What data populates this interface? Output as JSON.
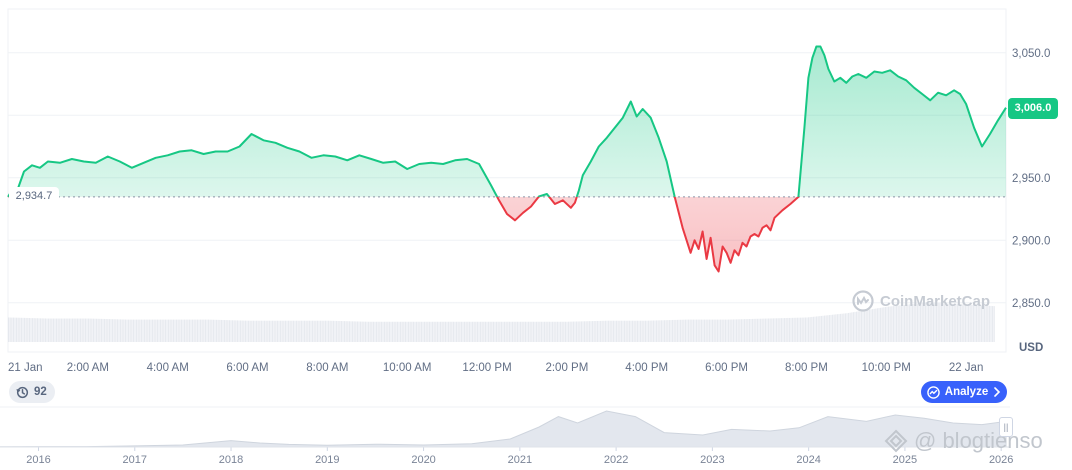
{
  "colors": {
    "up": "#16c784",
    "down": "#ea3943",
    "accent": "#3861fb",
    "grid": "#eff2f5",
    "axis_text": "#616e85"
  },
  "price_chip": "3,006.0",
  "base_chip": "2,934.7",
  "currency_label": "USD",
  "history_button": {
    "icon": "history-icon",
    "count": "92"
  },
  "analyze_button": {
    "icon": "analyze-icon",
    "label": "Analyze",
    "chevron": "chevron-right-icon"
  },
  "watermark": {
    "text": "CoinMarketCap",
    "icon": "coinmarketcap-logo"
  },
  "overlay_mark": "@ blogtienso",
  "chart_data": [
    {
      "type": "area",
      "baseline": 2934.7,
      "last_price": 3006.0,
      "ylim": [
        2825,
        3085
      ],
      "yticks": [
        2850.0,
        2900.0,
        2950.0,
        3000.0,
        3050.0
      ],
      "ytick_labels": [
        "2,850.0",
        "2,900.0",
        "2,950.0",
        "",
        "3,050.0"
      ],
      "xlim": [
        -1.0,
        24.0
      ],
      "xticks": [
        -1,
        1,
        3,
        5,
        7,
        9,
        11,
        13,
        15,
        17,
        19,
        21,
        23
      ],
      "xtick_labels": [
        "21 Jan",
        "2:00 AM",
        "4:00 AM",
        "6:00 AM",
        "8:00 AM",
        "10:00 AM",
        "12:00 PM",
        "2:00 PM",
        "4:00 PM",
        "6:00 PM",
        "8:00 PM",
        "10:00 PM",
        "22 Jan"
      ],
      "x_hours": [
        -1.0,
        -0.9,
        -0.8,
        -0.6,
        -0.4,
        -0.2,
        0.0,
        0.3,
        0.6,
        0.9,
        1.2,
        1.5,
        1.8,
        2.1,
        2.4,
        2.7,
        3.0,
        3.3,
        3.6,
        3.9,
        4.2,
        4.5,
        4.8,
        5.1,
        5.4,
        5.7,
        6.0,
        6.3,
        6.6,
        6.9,
        7.2,
        7.5,
        7.8,
        8.1,
        8.4,
        8.7,
        9.0,
        9.3,
        9.6,
        9.9,
        10.2,
        10.5,
        10.8,
        11.1,
        11.3,
        11.5,
        11.7,
        11.9,
        12.1,
        12.3,
        12.5,
        12.7,
        12.9,
        13.1,
        13.2,
        13.3,
        13.4,
        13.6,
        13.8,
        14.0,
        14.2,
        14.4,
        14.6,
        14.75,
        14.9,
        15.1,
        15.3,
        15.5,
        15.7,
        15.9,
        16.1,
        16.2,
        16.3,
        16.4,
        16.5,
        16.6,
        16.7,
        16.8,
        16.9,
        17.0,
        17.1,
        17.2,
        17.3,
        17.4,
        17.5,
        17.6,
        17.7,
        17.8,
        17.9,
        18.0,
        18.1,
        18.2,
        18.4,
        18.6,
        18.8,
        18.95,
        19.05,
        19.15,
        19.25,
        19.35,
        19.45,
        19.55,
        19.7,
        19.85,
        20.0,
        20.15,
        20.3,
        20.5,
        20.7,
        20.9,
        21.1,
        21.3,
        21.5,
        21.7,
        21.9,
        22.1,
        22.3,
        22.5,
        22.7,
        22.85,
        23.0,
        23.2,
        23.4,
        23.6,
        23.8,
        24.0
      ],
      "y_price": [
        2934.7,
        2940,
        2937,
        2955,
        2960,
        2958,
        2963,
        2962,
        2965,
        2963,
        2962,
        2967,
        2963,
        2958,
        2962,
        2966,
        2968,
        2971,
        2972,
        2969,
        2971,
        2971,
        2975,
        2985,
        2980,
        2978,
        2974,
        2971,
        2966,
        2968,
        2967,
        2964,
        2968,
        2965,
        2962,
        2963,
        2957,
        2961,
        2962,
        2961,
        2964,
        2965,
        2961,
        2944,
        2932,
        2921,
        2916,
        2922,
        2927,
        2935,
        2937,
        2929,
        2932,
        2926,
        2930,
        2940,
        2952,
        2963,
        2975,
        2982,
        2990,
        2998,
        3011,
        2999,
        3005,
        2998,
        2982,
        2963,
        2934.7,
        2910,
        2890,
        2900,
        2893,
        2907,
        2885,
        2902,
        2880,
        2875,
        2895,
        2890,
        2882,
        2892,
        2888,
        2898,
        2895,
        2903,
        2905,
        2903,
        2910,
        2912,
        2908,
        2918,
        2924,
        2929,
        2934.7,
        2990,
        3030,
        3046,
        3055,
        3055,
        3048,
        3037,
        3027,
        3030,
        3026,
        3031,
        3033,
        3030,
        3035,
        3034,
        3036,
        3031,
        3028,
        3022,
        3017,
        3012,
        3018,
        3016,
        3020,
        3017,
        3009,
        2990,
        2975,
        2985,
        2996,
        3006.0
      ],
      "volume_range": [
        0.55,
        1.0
      ],
      "volume_per_hour": [
        0.78,
        0.77,
        0.77,
        0.76,
        0.76,
        0.76,
        0.75,
        0.75,
        0.75,
        0.74,
        0.74,
        0.74,
        0.74,
        0.74,
        0.74,
        0.75,
        0.75,
        0.76,
        0.76,
        0.77,
        0.78,
        0.82,
        0.88,
        0.92,
        0.9
      ]
    },
    {
      "type": "area",
      "x": [
        2015.6,
        2016.0,
        2016.5,
        2017.0,
        2017.5,
        2018.0,
        2018.3,
        2018.6,
        2019.0,
        2019.5,
        2020.0,
        2020.5,
        2020.9,
        2021.2,
        2021.4,
        2021.6,
        2021.9,
        2022.2,
        2022.5,
        2022.9,
        2023.2,
        2023.6,
        2023.9,
        2024.2,
        2024.6,
        2024.9,
        2025.2,
        2025.5,
        2025.8,
        2026.05
      ],
      "y": [
        0.4,
        0.45,
        0.5,
        1.4,
        2.5,
        8.0,
        5.0,
        3.2,
        2.2,
        3.5,
        2.5,
        4.0,
        10.0,
        25.0,
        38.0,
        30.0,
        45.0,
        38.0,
        18.0,
        15.0,
        22.0,
        20.0,
        24.0,
        38.0,
        32.0,
        40.0,
        36.0,
        30.0,
        28.0,
        32.0
      ],
      "ylim": [
        0,
        50
      ],
      "xticks": [
        2016,
        2017,
        2018,
        2019,
        2020,
        2021,
        2022,
        2023,
        2024,
        2025,
        2026
      ],
      "xtick_labels": [
        "2016",
        "2017",
        "2018",
        "2019",
        "2020",
        "2021",
        "2022",
        "2023",
        "2024",
        "2025",
        "2026"
      ]
    }
  ]
}
